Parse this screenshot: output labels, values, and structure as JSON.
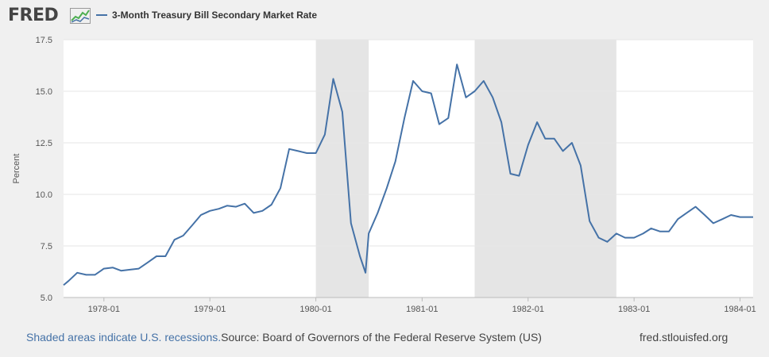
{
  "brand": {
    "logo_text": "FRED"
  },
  "legend": {
    "series_name": "3-Month Treasury Bill Secondary Market Rate"
  },
  "footer": {
    "recession_note": "Shaded areas indicate U.S. recessions.",
    "source": "Source: Board of Governors of the Federal Reserve System (US)",
    "site": "fred.stlouisfed.org"
  },
  "colors": {
    "series": "#4572a7",
    "recession": "#e5e5e5",
    "grid": "#e6e6e6",
    "background": "#f0f0f0",
    "plot": "#ffffff"
  },
  "chart_data": {
    "type": "line",
    "title": "",
    "xlabel": "",
    "ylabel": "Percent",
    "ylim": [
      5.0,
      17.5
    ],
    "xlim": [
      "1977-08-15",
      "1984-02-15"
    ],
    "y_ticks": [
      "5.0",
      "7.5",
      "10.0",
      "12.5",
      "15.0",
      "17.5"
    ],
    "x_ticks": [
      "1978-01",
      "1979-01",
      "1980-01",
      "1981-01",
      "1982-01",
      "1983-01",
      "1984-01"
    ],
    "grid": true,
    "legend_position": "top-left",
    "recessions": [
      {
        "start": "1980-01-01",
        "end": "1980-07-01"
      },
      {
        "start": "1981-07-01",
        "end": "1982-11-01"
      }
    ],
    "series": [
      {
        "name": "3-Month Treasury Bill Secondary Market Rate",
        "points": [
          [
            "1977-08-15",
            5.6
          ],
          [
            "1977-09-01",
            5.8
          ],
          [
            "1977-10-01",
            6.2
          ],
          [
            "1977-11-01",
            6.1
          ],
          [
            "1977-12-01",
            6.1
          ],
          [
            "1978-01-01",
            6.4
          ],
          [
            "1978-02-01",
            6.45
          ],
          [
            "1978-03-01",
            6.3
          ],
          [
            "1978-04-01",
            6.35
          ],
          [
            "1978-05-01",
            6.4
          ],
          [
            "1978-06-01",
            6.7
          ],
          [
            "1978-07-01",
            7.0
          ],
          [
            "1978-08-01",
            7.0
          ],
          [
            "1978-09-01",
            7.8
          ],
          [
            "1978-10-01",
            8.0
          ],
          [
            "1978-11-01",
            8.5
          ],
          [
            "1978-12-01",
            9.0
          ],
          [
            "1979-01-01",
            9.2
          ],
          [
            "1979-02-01",
            9.3
          ],
          [
            "1979-03-01",
            9.45
          ],
          [
            "1979-04-01",
            9.4
          ],
          [
            "1979-05-01",
            9.55
          ],
          [
            "1979-06-01",
            9.1
          ],
          [
            "1979-07-01",
            9.2
          ],
          [
            "1979-08-01",
            9.5
          ],
          [
            "1979-09-01",
            10.3
          ],
          [
            "1979-10-01",
            12.2
          ],
          [
            "1979-11-01",
            12.1
          ],
          [
            "1979-12-01",
            12.0
          ],
          [
            "1980-01-01",
            12.0
          ],
          [
            "1980-02-01",
            12.9
          ],
          [
            "1980-03-01",
            15.6
          ],
          [
            "1980-04-01",
            14.0
          ],
          [
            "1980-05-01",
            8.6
          ],
          [
            "1980-06-01",
            7.0
          ],
          [
            "1980-06-20",
            6.2
          ],
          [
            "1980-07-01",
            8.1
          ],
          [
            "1980-08-01",
            9.1
          ],
          [
            "1980-09-01",
            10.3
          ],
          [
            "1980-10-01",
            11.6
          ],
          [
            "1980-11-01",
            13.7
          ],
          [
            "1980-12-01",
            15.5
          ],
          [
            "1981-01-01",
            15.0
          ],
          [
            "1981-02-01",
            14.9
          ],
          [
            "1981-03-01",
            13.4
          ],
          [
            "1981-04-01",
            13.7
          ],
          [
            "1981-05-01",
            16.3
          ],
          [
            "1981-06-01",
            14.7
          ],
          [
            "1981-07-01",
            15.0
          ],
          [
            "1981-08-01",
            15.5
          ],
          [
            "1981-09-01",
            14.7
          ],
          [
            "1981-10-01",
            13.5
          ],
          [
            "1981-11-01",
            11.0
          ],
          [
            "1981-12-01",
            10.9
          ],
          [
            "1982-01-01",
            12.4
          ],
          [
            "1982-02-01",
            13.5
          ],
          [
            "1982-03-01",
            12.7
          ],
          [
            "1982-04-01",
            12.7
          ],
          [
            "1982-05-01",
            12.1
          ],
          [
            "1982-06-01",
            12.5
          ],
          [
            "1982-07-01",
            11.4
          ],
          [
            "1982-08-01",
            8.7
          ],
          [
            "1982-09-01",
            7.9
          ],
          [
            "1982-10-01",
            7.7
          ],
          [
            "1982-11-01",
            8.1
          ],
          [
            "1982-12-01",
            7.9
          ],
          [
            "1983-01-01",
            7.9
          ],
          [
            "1983-02-01",
            8.1
          ],
          [
            "1983-03-01",
            8.35
          ],
          [
            "1983-04-01",
            8.2
          ],
          [
            "1983-05-01",
            8.2
          ],
          [
            "1983-06-01",
            8.8
          ],
          [
            "1983-07-01",
            9.1
          ],
          [
            "1983-08-01",
            9.4
          ],
          [
            "1983-09-01",
            9.0
          ],
          [
            "1983-10-01",
            8.6
          ],
          [
            "1983-11-01",
            8.8
          ],
          [
            "1983-12-01",
            9.0
          ],
          [
            "1984-01-01",
            8.9
          ],
          [
            "1984-02-15",
            8.9
          ]
        ]
      }
    ]
  }
}
